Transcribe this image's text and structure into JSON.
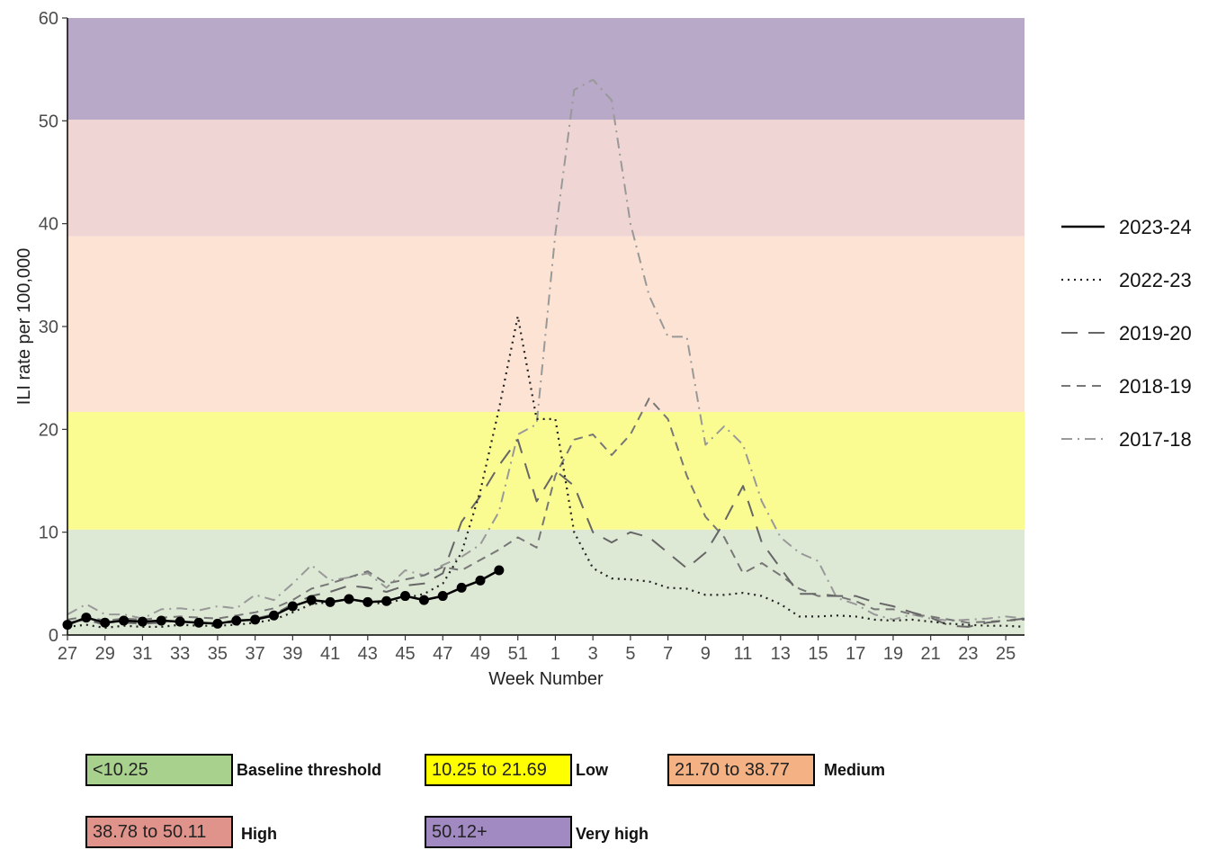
{
  "chart_data": {
    "type": "line",
    "xlabel": "Week Number",
    "ylabel": "ILI rate per 100,000",
    "ylim": [
      0,
      60
    ],
    "yticks": [
      0,
      10,
      20,
      30,
      40,
      50,
      60
    ],
    "week_order": [
      27,
      28,
      29,
      30,
      31,
      32,
      33,
      34,
      35,
      36,
      37,
      38,
      39,
      40,
      41,
      42,
      43,
      44,
      45,
      46,
      47,
      48,
      49,
      50,
      51,
      52,
      1,
      2,
      3,
      4,
      5,
      6,
      7,
      8,
      9,
      10,
      11,
      12,
      13,
      14,
      15,
      16,
      17,
      18,
      19,
      20,
      21,
      22,
      23,
      24,
      25,
      26
    ],
    "xtick_labels": [
      "27",
      "29",
      "31",
      "33",
      "35",
      "37",
      "39",
      "41",
      "43",
      "45",
      "47",
      "49",
      "51",
      "1",
      "3",
      "5",
      "7",
      "9",
      "11",
      "13",
      "15",
      "17",
      "19",
      "21",
      "23",
      "25"
    ],
    "grid": false,
    "legend_position": "right",
    "bands": [
      {
        "from": 0,
        "to": 10.25,
        "color": "#dde8d5"
      },
      {
        "from": 10.25,
        "to": 21.69,
        "color": "#fafc91"
      },
      {
        "from": 21.69,
        "to": 38.77,
        "color": "#fce3d3"
      },
      {
        "from": 38.77,
        "to": 50.11,
        "color": "#f0d5d5"
      },
      {
        "from": 50.11,
        "to": 60,
        "color": "#b8a9c8"
      }
    ],
    "series": [
      {
        "name": "2023-24",
        "style": "solid",
        "color": "#000000",
        "markers": true,
        "values": [
          1.0,
          1.7,
          1.2,
          1.4,
          1.3,
          1.4,
          1.3,
          1.2,
          1.1,
          1.4,
          1.5,
          1.9,
          2.8,
          3.4,
          3.2,
          3.5,
          3.2,
          3.3,
          3.8,
          3.4,
          3.8,
          4.6,
          5.3,
          6.3
        ]
      },
      {
        "name": "2022-23",
        "style": "dotted",
        "color": "#222222",
        "markers": false,
        "values": [
          0.8,
          1.0,
          0.7,
          0.9,
          0.8,
          0.8,
          1.0,
          0.9,
          0.9,
          1.0,
          1.2,
          1.5,
          2.2,
          3.0,
          3.2,
          3.5,
          3.2,
          3.0,
          3.6,
          4.0,
          5.0,
          8.0,
          14.0,
          22.0,
          31.0,
          21.0,
          21.0,
          10.0,
          6.5,
          5.5,
          5.4,
          5.2,
          4.6,
          4.5,
          3.9,
          3.9,
          4.1,
          3.8,
          3.0,
          1.8,
          1.8,
          1.9,
          1.8,
          1.5,
          1.4,
          1.5,
          1.3,
          1.1,
          1.0,
          0.9,
          0.9,
          0.8
        ]
      },
      {
        "name": "2019-20",
        "style": "longdash",
        "color": "#666666",
        "markers": false,
        "values": [
          1.2,
          1.5,
          1.0,
          1.2,
          1.1,
          1.2,
          1.3,
          1.2,
          1.1,
          1.3,
          1.6,
          2.0,
          3.0,
          3.8,
          4.2,
          4.8,
          4.6,
          4.2,
          4.8,
          5.0,
          6.0,
          11.0,
          13.5,
          16.5,
          19.0,
          13.0,
          16.0,
          14.5,
          10.0,
          9.0,
          10.0,
          9.5,
          8.0,
          6.5,
          8.0,
          11.0,
          14.5,
          9.0,
          6.5,
          4.0,
          4.0,
          3.8,
          3.8,
          3.2,
          2.8,
          2.2,
          1.7,
          0.9,
          0.8,
          1.2,
          1.4,
          1.6
        ]
      },
      {
        "name": "2018-19",
        "style": "dashed",
        "color": "#777777",
        "markers": false,
        "values": [
          1.5,
          1.8,
          1.4,
          1.6,
          1.5,
          1.7,
          1.8,
          1.7,
          1.6,
          1.9,
          2.2,
          2.6,
          3.4,
          4.5,
          5.0,
          5.6,
          6.2,
          5.0,
          5.4,
          5.8,
          6.6,
          6.3,
          7.3,
          8.3,
          9.5,
          8.5,
          15.5,
          19.0,
          19.5,
          17.5,
          19.5,
          23.0,
          21.0,
          15.5,
          11.5,
          9.5,
          6.0,
          7.0,
          5.8,
          4.5,
          3.8,
          3.8,
          3.3,
          2.5,
          2.5,
          2.0,
          1.8,
          1.5,
          1.2,
          1.3,
          1.4,
          1.5
        ]
      },
      {
        "name": "2017-18",
        "style": "dashdot",
        "color": "#999999",
        "markers": false,
        "values": [
          2.0,
          3.0,
          2.0,
          2.0,
          1.6,
          2.5,
          2.6,
          2.4,
          2.8,
          2.6,
          3.9,
          3.4,
          5.0,
          6.8,
          5.3,
          5.6,
          6.0,
          4.6,
          6.3,
          5.8,
          6.8,
          7.6,
          8.8,
          12.0,
          19.5,
          20.5,
          39.0,
          53.0,
          54.0,
          52.0,
          40.0,
          33.0,
          29.0,
          29.0,
          18.5,
          20.3,
          18.5,
          13.0,
          9.5,
          8.0,
          7.2,
          3.6,
          3.0,
          2.0,
          1.5,
          2.0,
          1.6,
          1.4,
          1.5,
          1.6,
          1.8,
          1.6
        ]
      }
    ]
  },
  "threshold_legend": [
    {
      "range": "<10.25",
      "label": "Baseline threshold",
      "color": "#a9d18e"
    },
    {
      "range": "10.25 to 21.69",
      "label": "Low",
      "color": "#ffff00"
    },
    {
      "range": "21.70 to 38.77",
      "label": "Medium",
      "color": "#f4b183"
    },
    {
      "range": "38.78 to 50.11",
      "label": "High",
      "color": "#e0938b"
    },
    {
      "range": "50.12+",
      "label": "Very high",
      "color": "#a189c1"
    }
  ]
}
